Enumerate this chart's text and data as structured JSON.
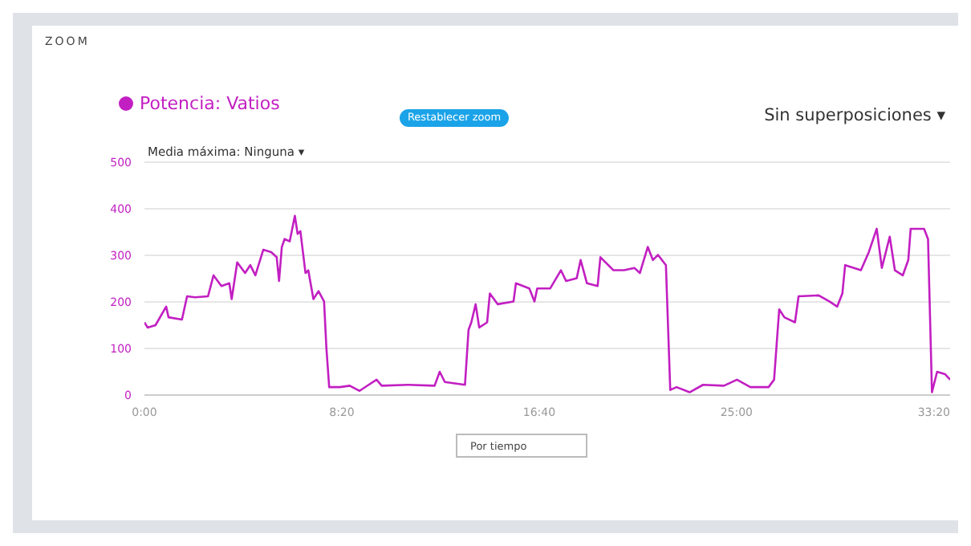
{
  "chart_data": {
    "type": "line",
    "annotations": [
      "ZOOM",
      "Restablecer zoom",
      "Sin superposiciones ▾",
      "Media máxima: Ninguna ▾",
      "Por tiempo"
    ],
    "x": [
      0,
      8,
      28,
      55,
      61,
      95,
      108,
      128,
      161,
      175,
      195,
      215,
      221,
      235,
      255,
      268,
      281,
      301,
      321,
      335,
      341,
      348,
      355,
      368,
      381,
      388,
      395,
      408,
      415,
      428,
      441,
      455,
      461,
      468,
      495,
      520,
      545,
      568,
      588,
      601,
      668,
      735,
      748,
      761,
      812,
      821,
      828,
      839,
      848,
      868,
      875,
      895,
      935,
      941,
      975,
      988,
      995,
      1028,
      1055,
      1068,
      1095,
      1105,
      1121,
      1148,
      1155,
      1188,
      1215,
      1241,
      1255,
      1275,
      1288,
      1301,
      1321,
      1332,
      1348,
      1381,
      1415,
      1468,
      1501,
      1535,
      1581,
      1595,
      1608,
      1621,
      1648,
      1657,
      1708,
      1735,
      1755,
      1768,
      1775,
      1815,
      1835,
      1855,
      1868,
      1888,
      1901,
      1921,
      1935,
      1941,
      1975,
      1985,
      1995,
      2008,
      2028,
      2041
    ],
    "series": [
      {
        "name": "Potencia: Vatios",
        "color": "#c21fc2",
        "values": [
          156,
          145,
          150,
          190,
          167,
          162,
          212,
          210,
          212,
          257,
          234,
          240,
          206,
          285,
          262,
          279,
          257,
          312,
          307,
          296,
          245,
          318,
          335,
          330,
          385,
          346,
          352,
          262,
          268,
          206,
          223,
          201,
          100,
          17,
          17,
          20,
          9,
          22,
          33,
          20,
          22,
          20,
          50,
          28,
          22,
          140,
          156,
          195,
          145,
          156,
          218,
          195,
          201,
          240,
          229,
          201,
          229,
          229,
          268,
          245,
          251,
          290,
          240,
          234,
          296,
          268,
          268,
          273,
          262,
          318,
          290,
          301,
          279,
          11,
          17,
          6,
          22,
          20,
          33,
          17,
          17,
          33,
          184,
          167,
          156,
          212,
          214,
          201,
          190,
          218,
          279,
          268,
          307,
          357,
          273,
          340,
          268,
          257,
          290,
          357,
          357,
          335,
          6,
          50,
          45,
          33
        ]
      }
    ],
    "xlim": [
      0,
      2041
    ],
    "xticks": [
      {
        "value": 0,
        "label": "0:00"
      },
      {
        "value": 500,
        "label": "8:20"
      },
      {
        "value": 1000,
        "label": "16:40"
      },
      {
        "value": 1500,
        "label": "25:00"
      },
      {
        "value": 2000,
        "label": "33:20"
      }
    ],
    "ylim": [
      0,
      500
    ],
    "yticks": [
      0,
      100,
      200,
      300,
      400,
      500
    ],
    "grid": "y",
    "legend": "top left",
    "marker": "none",
    "line_style": "solid"
  }
}
